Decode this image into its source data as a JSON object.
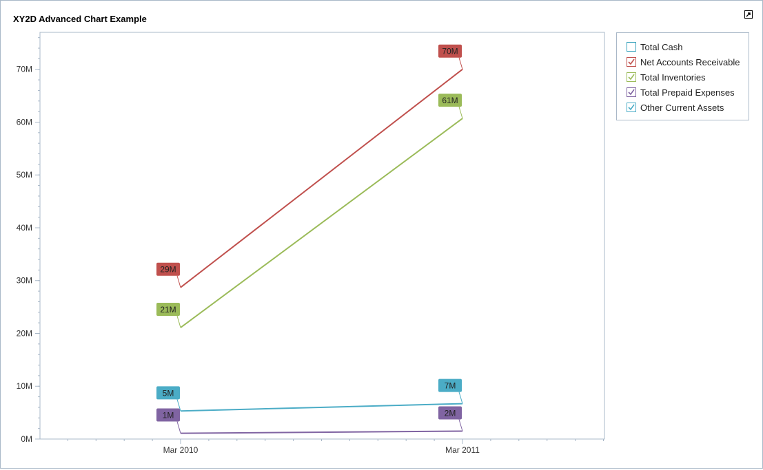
{
  "window": {
    "title": "XY2D Advanced Chart Example",
    "popout_icon": "popout-icon"
  },
  "legend": {
    "items": [
      {
        "label": "Total Cash",
        "color": "#3aa3bd",
        "checked": false
      },
      {
        "label": "Net Accounts Receivable",
        "color": "#c0504d",
        "checked": true
      },
      {
        "label": "Total Inventories",
        "color": "#9bbb59",
        "checked": true
      },
      {
        "label": "Total Prepaid Expenses",
        "color": "#8064a2",
        "checked": true
      },
      {
        "label": "Other Current Assets",
        "color": "#4bacc6",
        "checked": true
      }
    ]
  },
  "chart_data": {
    "type": "line",
    "title": "XY2D Advanced Chart Example",
    "x": [
      "Mar 2010",
      "Mar 2011"
    ],
    "ylim": [
      0,
      77000000
    ],
    "yticks": [
      0,
      10000000,
      20000000,
      30000000,
      40000000,
      50000000,
      60000000,
      70000000
    ],
    "ytick_labels": [
      "0M",
      "10M",
      "20M",
      "30M",
      "40M",
      "50M",
      "60M",
      "70M"
    ],
    "grid": false,
    "legend_position": "top-right",
    "series": [
      {
        "name": "Net Accounts Receivable",
        "color": "#c0504d",
        "values": [
          28700000,
          70000000
        ],
        "labels": [
          "29M",
          "70M"
        ]
      },
      {
        "name": "Total Inventories",
        "color": "#9bbb59",
        "values": [
          21100000,
          60700000
        ],
        "labels": [
          "21M",
          "61M"
        ]
      },
      {
        "name": "Other Current Assets",
        "color": "#4bacc6",
        "values": [
          5300000,
          6700000
        ],
        "labels": [
          "5M",
          "7M"
        ]
      },
      {
        "name": "Total Prepaid Expenses",
        "color": "#8064a2",
        "values": [
          1100000,
          1500000
        ],
        "labels": [
          "1M",
          "2M"
        ]
      }
    ]
  }
}
